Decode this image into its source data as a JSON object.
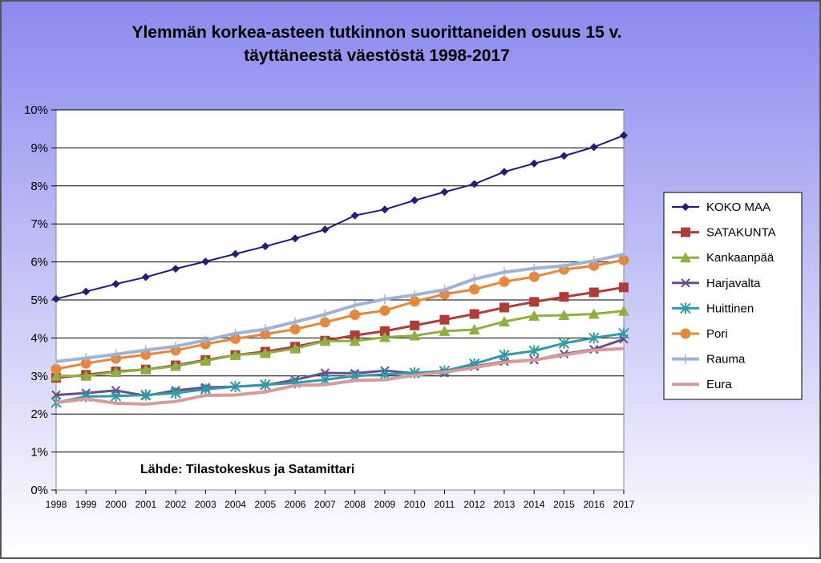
{
  "chart_data": {
    "type": "line",
    "title_line1": "Ylemmän korkea-asteen tutkinnon suorittaneiden osuus 15 v.",
    "title_line2": "täyttäneestä väestöstä 1998-2017",
    "annotation": "Lähde: Tilastokeskus ja Satamittari",
    "xlabel": "",
    "ylabel": "",
    "ylim": [
      0,
      10
    ],
    "yticks": [
      "0%",
      "1%",
      "2%",
      "3%",
      "4%",
      "5%",
      "6%",
      "7%",
      "8%",
      "9%",
      "10%"
    ],
    "x": [
      "1998",
      "1999",
      "2000",
      "2001",
      "2002",
      "2003",
      "2004",
      "2005",
      "2006",
      "2007",
      "2008",
      "2009",
      "2010",
      "2011",
      "2012",
      "2013",
      "2014",
      "2015",
      "2016",
      "2017"
    ],
    "grid": true,
    "legend_position": "right",
    "background": "#8f8fef",
    "series": [
      {
        "name": "KOKO MAA",
        "color": "#1f1f7a",
        "marker": "diamond",
        "width": 2,
        "values": [
          5.03,
          5.22,
          5.42,
          5.6,
          5.82,
          6.01,
          6.21,
          6.41,
          6.62,
          6.85,
          7.22,
          7.38,
          7.62,
          7.84,
          8.05,
          8.37,
          8.59,
          8.79,
          9.02,
          9.33
        ]
      },
      {
        "name": "SATAKUNTA",
        "color": "#b03b37",
        "marker": "square",
        "width": 3,
        "values": [
          2.95,
          3.03,
          3.12,
          3.17,
          3.28,
          3.42,
          3.55,
          3.64,
          3.77,
          3.93,
          4.07,
          4.18,
          4.33,
          4.48,
          4.63,
          4.8,
          4.95,
          5.08,
          5.2,
          5.33
        ]
      },
      {
        "name": "Kankaanpää",
        "color": "#8fb040",
        "marker": "triangle",
        "width": 3,
        "values": [
          3.0,
          3.0,
          3.1,
          3.17,
          3.26,
          3.4,
          3.55,
          3.6,
          3.72,
          3.92,
          3.92,
          4.02,
          4.06,
          4.18,
          4.22,
          4.43,
          4.58,
          4.6,
          4.63,
          4.71
        ]
      },
      {
        "name": "Harjavalta",
        "color": "#6b4b8a",
        "marker": "x",
        "width": 3,
        "values": [
          2.5,
          2.55,
          2.62,
          2.48,
          2.62,
          2.7,
          2.72,
          2.76,
          2.9,
          3.08,
          3.07,
          3.14,
          3.07,
          3.08,
          3.25,
          3.38,
          3.42,
          3.58,
          3.7,
          3.97
        ]
      },
      {
        "name": "Huittinen",
        "color": "#2f9aaa",
        "marker": "star",
        "width": 3,
        "values": [
          2.3,
          2.46,
          2.47,
          2.5,
          2.55,
          2.65,
          2.72,
          2.77,
          2.82,
          2.9,
          3.0,
          3.04,
          3.08,
          3.13,
          3.32,
          3.55,
          3.66,
          3.86,
          4.0,
          4.12
        ]
      },
      {
        "name": "Pori",
        "color": "#e8863a",
        "marker": "circle",
        "width": 3,
        "values": [
          3.18,
          3.33,
          3.46,
          3.56,
          3.67,
          3.84,
          3.98,
          4.1,
          4.23,
          4.41,
          4.61,
          4.72,
          4.96,
          5.15,
          5.28,
          5.48,
          5.61,
          5.8,
          5.9,
          6.05
        ]
      },
      {
        "name": "Rauma",
        "color": "#9fb3d8",
        "marker": "plus",
        "width": 4,
        "values": [
          3.38,
          3.47,
          3.57,
          3.68,
          3.78,
          3.94,
          4.12,
          4.23,
          4.42,
          4.62,
          4.86,
          5.02,
          5.13,
          5.27,
          5.55,
          5.73,
          5.83,
          5.9,
          6.03,
          6.2
        ]
      },
      {
        "name": "Eura",
        "color": "#d89a9a",
        "marker": "none",
        "width": 4,
        "values": [
          2.3,
          2.4,
          2.28,
          2.26,
          2.33,
          2.49,
          2.5,
          2.58,
          2.75,
          2.77,
          2.88,
          2.9,
          3.02,
          3.1,
          3.22,
          3.36,
          3.42,
          3.55,
          3.68,
          3.72
        ]
      }
    ]
  }
}
